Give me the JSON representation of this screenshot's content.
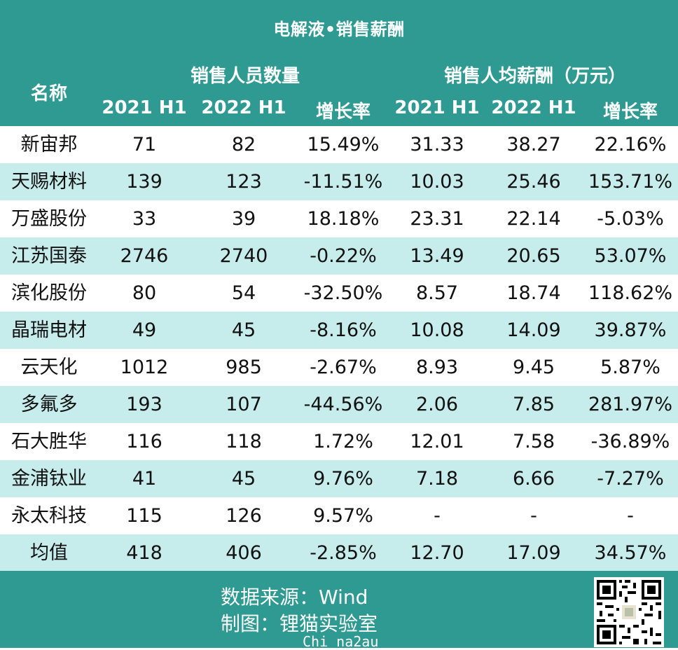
{
  "title": "电解液•销售薪酬",
  "header": {
    "name_col": "名称",
    "group1": "销售人员数量",
    "group2": "销售人均薪酬（万元）",
    "sub": [
      "2021 H1",
      "2022 H1",
      "增长率",
      "2021 H1",
      "2022 H1",
      "增长率"
    ]
  },
  "rows": [
    {
      "name": "新宙邦",
      "c1": "71",
      "c2": "82",
      "c3": "15.49%",
      "c4": "31.33",
      "c5": "38.27",
      "c6": "22.16%"
    },
    {
      "name": "天赐材料",
      "c1": "139",
      "c2": "123",
      "c3": "-11.51%",
      "c4": "10.03",
      "c5": "25.46",
      "c6": "153.71%"
    },
    {
      "name": "万盛股份",
      "c1": "33",
      "c2": "39",
      "c3": "18.18%",
      "c4": "23.31",
      "c5": "22.14",
      "c6": "-5.03%"
    },
    {
      "name": "江苏国泰",
      "c1": "2746",
      "c2": "2740",
      "c3": "-0.22%",
      "c4": "13.49",
      "c5": "20.65",
      "c6": "53.07%"
    },
    {
      "name": "滨化股份",
      "c1": "80",
      "c2": "54",
      "c3": "-32.50%",
      "c4": "8.57",
      "c5": "18.74",
      "c6": "118.62%"
    },
    {
      "name": "晶瑞电材",
      "c1": "49",
      "c2": "45",
      "c3": "-8.16%",
      "c4": "10.08",
      "c5": "14.09",
      "c6": "39.87%"
    },
    {
      "name": "云天化",
      "c1": "1012",
      "c2": "985",
      "c3": "-2.67%",
      "c4": "8.93",
      "c5": "9.45",
      "c6": "5.87%"
    },
    {
      "name": "多氟多",
      "c1": "193",
      "c2": "107",
      "c3": "-44.56%",
      "c4": "2.06",
      "c5": "7.85",
      "c6": "281.97%"
    },
    {
      "name": "石大胜华",
      "c1": "116",
      "c2": "118",
      "c3": "1.72%",
      "c4": "12.01",
      "c5": "7.58",
      "c6": "-36.89%"
    },
    {
      "name": "金浦钛业",
      "c1": "41",
      "c2": "45",
      "c3": "9.76%",
      "c4": "7.18",
      "c5": "6.66",
      "c6": "-7.27%"
    },
    {
      "name": "永太科技",
      "c1": "115",
      "c2": "126",
      "c3": "9.57%",
      "c4": "-",
      "c5": "-",
      "c6": "-"
    },
    {
      "name": "均值",
      "c1": "418",
      "c2": "406",
      "c3": "-2.85%",
      "c4": "12.70",
      "c5": "17.09",
      "c6": "34.57%"
    }
  ],
  "footer": {
    "source": "数据来源：Wind",
    "maker": "制图：锂猫实验室",
    "watermark": "Chi na2au"
  },
  "colors": {
    "header_bg": "#2e9a91",
    "alt_row": "#c7ecec",
    "text": "#111111"
  },
  "icons": [
    "qr-code-icon"
  ]
}
